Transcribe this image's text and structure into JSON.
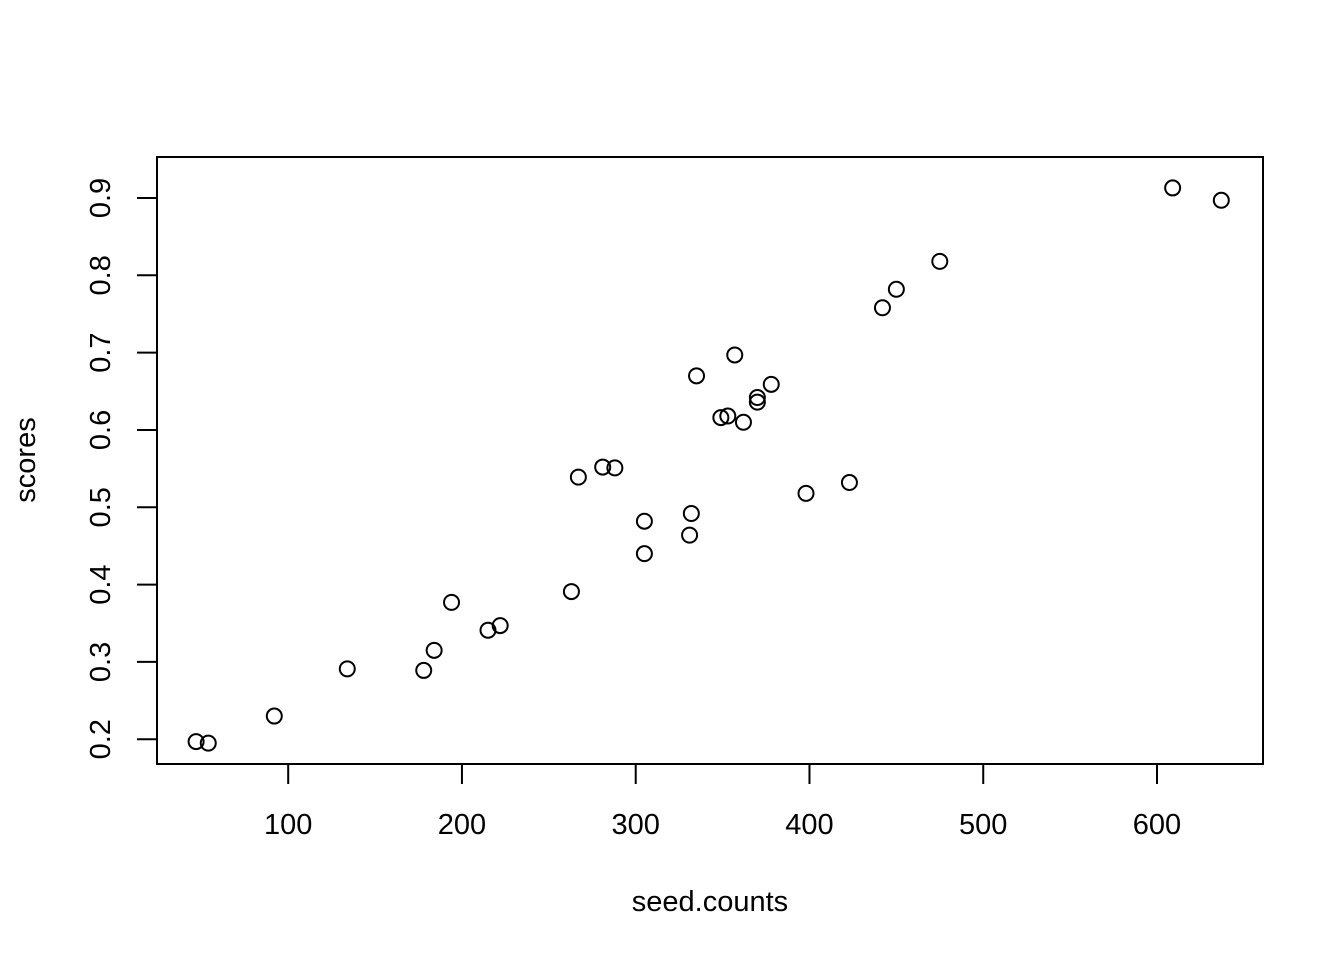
{
  "chart_data": {
    "type": "scatter",
    "title": "",
    "xlabel": "seed.counts",
    "ylabel": "scores",
    "xlim": [
      24.5,
      661
    ],
    "ylim": [
      0.168,
      0.953
    ],
    "xticks": [
      100,
      200,
      300,
      400,
      500,
      600
    ],
    "yticks": [
      0.2,
      0.3,
      0.4,
      0.5,
      0.6,
      0.7,
      0.8,
      0.9
    ],
    "xtick_labels": [
      "100",
      "200",
      "300",
      "400",
      "500",
      "600"
    ],
    "ytick_labels": [
      "0.2",
      "0.3",
      "0.4",
      "0.5",
      "0.6",
      "0.7",
      "0.8",
      "0.9"
    ],
    "grid": false,
    "legend": "none",
    "marker": "open-circle",
    "series": [
      {
        "points": [
          {
            "x": 47,
            "y": 0.197
          },
          {
            "x": 54,
            "y": 0.195
          },
          {
            "x": 92,
            "y": 0.23
          },
          {
            "x": 134,
            "y": 0.291
          },
          {
            "x": 178,
            "y": 0.289
          },
          {
            "x": 184,
            "y": 0.315
          },
          {
            "x": 194,
            "y": 0.377
          },
          {
            "x": 215,
            "y": 0.341
          },
          {
            "x": 222,
            "y": 0.347
          },
          {
            "x": 263,
            "y": 0.391
          },
          {
            "x": 267,
            "y": 0.539
          },
          {
            "x": 281,
            "y": 0.552
          },
          {
            "x": 288,
            "y": 0.551
          },
          {
            "x": 305,
            "y": 0.482
          },
          {
            "x": 305,
            "y": 0.44
          },
          {
            "x": 331,
            "y": 0.464
          },
          {
            "x": 332,
            "y": 0.492
          },
          {
            "x": 335,
            "y": 0.67
          },
          {
            "x": 349,
            "y": 0.616
          },
          {
            "x": 353,
            "y": 0.618
          },
          {
            "x": 357,
            "y": 0.697
          },
          {
            "x": 362,
            "y": 0.61
          },
          {
            "x": 370,
            "y": 0.642
          },
          {
            "x": 370,
            "y": 0.636
          },
          {
            "x": 378,
            "y": 0.659
          },
          {
            "x": 398,
            "y": 0.518
          },
          {
            "x": 423,
            "y": 0.532
          },
          {
            "x": 442,
            "y": 0.758
          },
          {
            "x": 450,
            "y": 0.782
          },
          {
            "x": 475,
            "y": 0.818
          },
          {
            "x": 609,
            "y": 0.913
          },
          {
            "x": 637,
            "y": 0.897
          }
        ]
      }
    ]
  }
}
